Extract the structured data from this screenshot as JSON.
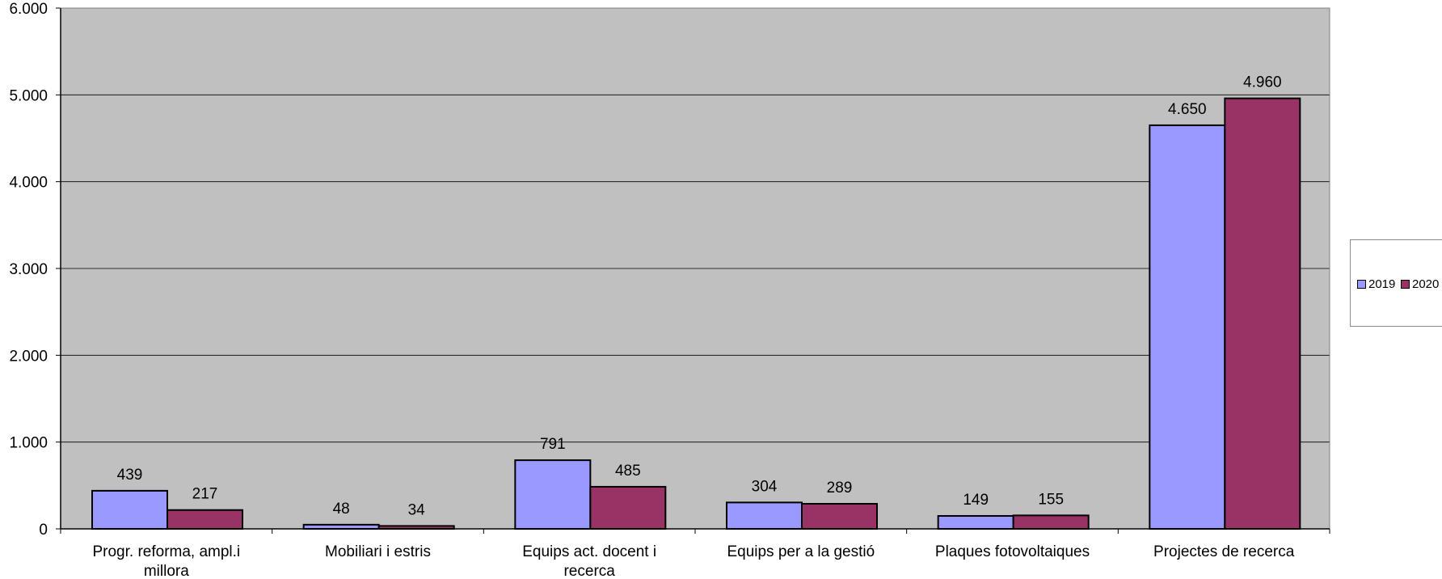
{
  "chart_data": {
    "type": "bar",
    "categories": [
      [
        "Progr. reforma, ampl.i",
        "millora"
      ],
      [
        "Mobiliari i estris"
      ],
      [
        "Equips act. docent i",
        "recerca"
      ],
      [
        "Equips per a la gestió"
      ],
      [
        "Plaques fotovoltaiques"
      ],
      [
        "Projectes de recerca"
      ]
    ],
    "series": [
      {
        "name": "2019",
        "values": [
          439,
          48,
          791,
          304,
          149,
          4650
        ],
        "color": "#9999ff"
      },
      {
        "name": "2020",
        "values": [
          217,
          34,
          485,
          289,
          155,
          4960
        ],
        "color": "#993366"
      }
    ],
    "data_labels": [
      [
        "439",
        "48",
        "791",
        "304",
        "149",
        "4.650"
      ],
      [
        "217",
        "34",
        "485",
        "289",
        "155",
        "4.960"
      ]
    ],
    "ylim": [
      0,
      6000
    ],
    "yticks": [
      0,
      1000,
      2000,
      3000,
      4000,
      5000,
      6000
    ],
    "ytick_labels": [
      "0",
      "1.000",
      "2.000",
      "3.000",
      "4.000",
      "5.000",
      "6.000"
    ],
    "grid": true,
    "plot_background": "#c0c0c0",
    "legend_position": "right"
  }
}
